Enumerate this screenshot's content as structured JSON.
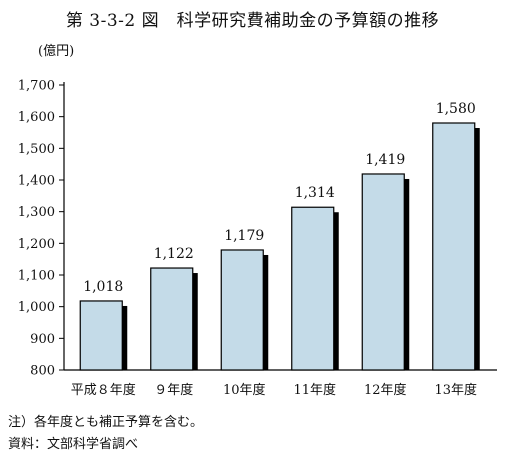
{
  "title": "第 3-3-2 図　科学研究費補助金の予算額の推移",
  "notes": [
    "注）各年度とも補正予算を含む。",
    "資料：文部科学省調べ"
  ],
  "chart_data": {
    "type": "bar",
    "title": "第 3-3-2 図　科学研究費補助金の予算額の推移",
    "ylabel": "(億円)",
    "xlabel": "",
    "ylim": [
      800,
      1700
    ],
    "yticks": [
      800,
      900,
      1000,
      1100,
      1200,
      1300,
      1400,
      1500,
      1600,
      1700
    ],
    "ytick_labels": [
      "800",
      "900",
      "1,000",
      "1,100",
      "1,200",
      "1,300",
      "1,400",
      "1,500",
      "1,600",
      "1,700"
    ],
    "categories": [
      "平成８年度",
      "９年度",
      "10年度",
      "11年度",
      "12年度",
      "13年度"
    ],
    "values": [
      1018,
      1122,
      1179,
      1314,
      1419,
      1580
    ],
    "value_labels": [
      "1,018",
      "1,122",
      "1,179",
      "1,314",
      "1,419",
      "1,580"
    ],
    "grid": false,
    "colors": {
      "bar_fill": "#c4dbe8",
      "bar_stroke": "#000000",
      "shadow": "#000000"
    }
  }
}
